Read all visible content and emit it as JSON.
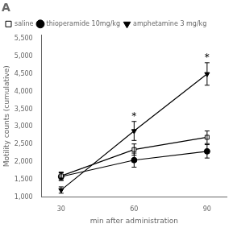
{
  "chart_data": {
    "type": "line",
    "title": "A",
    "xlabel": "min after administration",
    "ylabel": "Motility counts (cumulative)",
    "x": [
      30,
      60,
      90
    ],
    "series": [
      {
        "name": "saline",
        "color": "#000000",
        "marker": "square_open",
        "values": [
          1600,
          2350,
          2700
        ],
        "yerr": [
          110,
          160,
          180
        ]
      },
      {
        "name": "thioperamide 10mg/kg",
        "color": "#000000",
        "marker": "circle",
        "values": [
          1580,
          2050,
          2300
        ],
        "yerr": [
          110,
          200,
          190
        ]
      },
      {
        "name": "amphetamine 3 mg/kg",
        "color": "#000000",
        "marker": "triangle_down",
        "values": [
          1200,
          2880,
          4500
        ],
        "yerr": [
          90,
          270,
          320
        ]
      }
    ],
    "annotations": [
      {
        "text": "*",
        "x": 60,
        "y": 3230,
        "color": "#000000"
      },
      {
        "text": "*",
        "x": 90,
        "y": 4900,
        "color": "#000000"
      }
    ],
    "xlim": [
      22,
      98
    ],
    "xticks": [
      30,
      60,
      90
    ],
    "ylim": [
      1000,
      5600
    ],
    "yticks": [
      1000,
      1500,
      2000,
      2500,
      3000,
      3500,
      4000,
      4500,
      5000,
      5500
    ],
    "grid": false,
    "legend": "upper left"
  }
}
